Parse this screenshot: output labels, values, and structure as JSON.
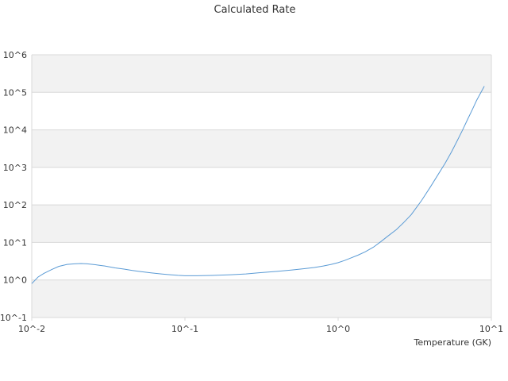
{
  "chart_data": {
    "type": "line",
    "title": "Calculated Rate",
    "xlabel": "Temperature (GK)",
    "ylabel": "",
    "x_scale": "log",
    "y_scale": "log",
    "xlim": [
      0.01,
      10
    ],
    "ylim": [
      0.1,
      1000000
    ],
    "x_ticks": [
      0.01,
      0.1,
      1,
      10
    ],
    "x_tick_labels": [
      "10^-2",
      "10^-1",
      "10^0",
      "10^1"
    ],
    "y_ticks": [
      0.1,
      1,
      10,
      100,
      1000,
      10000,
      100000,
      1000000
    ],
    "y_tick_labels": [
      "10^-1",
      "10^0",
      "10^1",
      "10^2",
      "10^3",
      "10^4",
      "10^5",
      "10^6"
    ],
    "grid": "alternating horizontal bands",
    "legend": "none",
    "colors": {
      "line": "#5b9bd5",
      "band": "#f2f2f2",
      "grid": "#d9d9d9"
    },
    "series": [
      {
        "x": [
          0.01,
          0.011,
          0.012,
          0.0135,
          0.015,
          0.017,
          0.019,
          0.021,
          0.023,
          0.026,
          0.03,
          0.035,
          0.04,
          0.045,
          0.05,
          0.06,
          0.07,
          0.08,
          0.09,
          0.1,
          0.12,
          0.15,
          0.2,
          0.25,
          0.3,
          0.4,
          0.5,
          0.6,
          0.7,
          0.8,
          0.9,
          1.0,
          1.1,
          1.2,
          1.35,
          1.5,
          1.7,
          1.9,
          2.1,
          2.4,
          2.7,
          3.0,
          3.5,
          4.0,
          4.5,
          5.0,
          5.5,
          6.0,
          6.5,
          7.0,
          7.5,
          8.0,
          8.5,
          9.0
        ],
        "y": [
          0.8,
          1.2,
          1.5,
          1.9,
          2.3,
          2.6,
          2.7,
          2.75,
          2.7,
          2.55,
          2.35,
          2.1,
          1.95,
          1.8,
          1.7,
          1.55,
          1.45,
          1.38,
          1.33,
          1.3,
          1.3,
          1.32,
          1.38,
          1.45,
          1.55,
          1.7,
          1.85,
          2.0,
          2.15,
          2.35,
          2.6,
          2.9,
          3.3,
          3.8,
          4.6,
          5.6,
          7.5,
          10.5,
          14.5,
          22,
          35,
          55,
          130,
          300,
          650,
          1300,
          2600,
          5200,
          10000,
          19000,
          34000,
          60000,
          95000,
          145000
        ]
      }
    ]
  }
}
